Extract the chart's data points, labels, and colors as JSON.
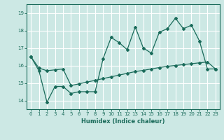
{
  "xlabel": "Humidex (Indice chaleur)",
  "background_color": "#cce8e4",
  "grid_color": "#ffffff",
  "line_color": "#1a6b5a",
  "xlim": [
    -0.5,
    23.5
  ],
  "ylim": [
    13.5,
    19.5
  ],
  "yticks": [
    14,
    15,
    16,
    17,
    18,
    19
  ],
  "xticks": [
    0,
    1,
    2,
    3,
    4,
    5,
    6,
    7,
    8,
    9,
    10,
    11,
    12,
    13,
    14,
    15,
    16,
    17,
    18,
    19,
    20,
    21,
    22,
    23
  ],
  "line1_x": [
    0,
    1,
    2,
    3,
    4,
    5,
    6,
    7,
    8,
    9,
    10,
    11,
    12,
    13,
    14,
    15,
    16,
    17,
    18,
    19,
    20,
    21,
    22,
    23
  ],
  "line1_y": [
    16.5,
    15.7,
    13.9,
    14.8,
    14.8,
    14.4,
    14.5,
    14.5,
    14.5,
    16.4,
    17.6,
    17.3,
    16.9,
    18.2,
    17.0,
    16.7,
    17.9,
    18.1,
    18.7,
    18.1,
    18.3,
    17.4,
    15.8,
    15.8
  ],
  "line2_x": [
    0,
    1,
    2,
    3,
    4,
    5,
    6,
    7,
    8,
    9,
    10,
    11,
    12,
    13,
    14,
    15,
    16,
    17,
    18,
    19,
    20,
    21,
    22,
    23
  ],
  "line2_y": [
    16.5,
    15.85,
    15.7,
    15.75,
    15.8,
    14.85,
    14.95,
    15.05,
    15.15,
    15.25,
    15.35,
    15.45,
    15.55,
    15.65,
    15.72,
    15.8,
    15.88,
    15.95,
    16.0,
    16.05,
    16.1,
    16.15,
    16.2,
    15.8
  ]
}
